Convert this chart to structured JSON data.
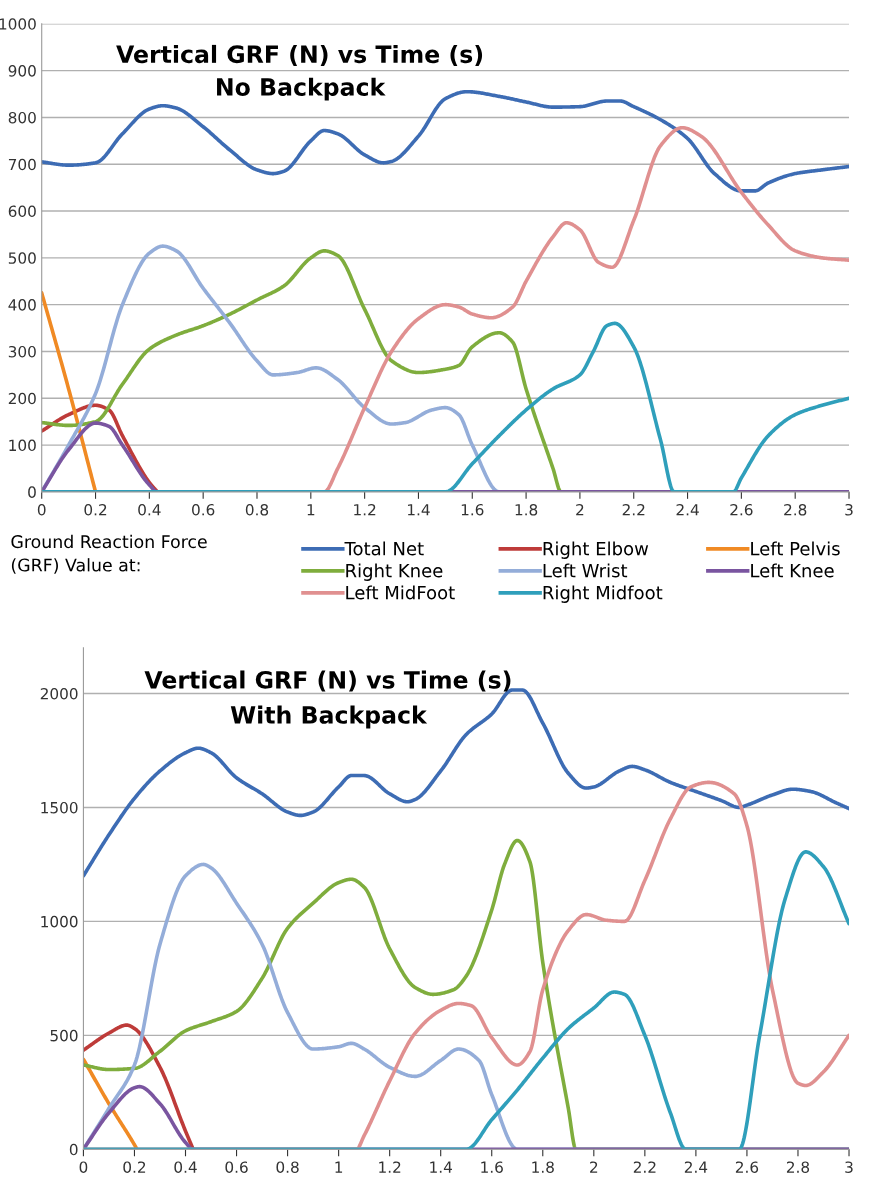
{
  "chart_data": [
    {
      "type": "line",
      "title": "Vertical GRF (N) vs Time (s)",
      "subtitle": "No Backpack",
      "legend_title": "Ground Reaction Force (GRF) Value at:",
      "legend": "bottom",
      "grid": "y",
      "line_style": "solid",
      "marker": "none",
      "xlim": [
        0,
        3
      ],
      "xticks": [
        0,
        0.2,
        0.4,
        0.6,
        0.8,
        1,
        1.2,
        1.4,
        1.6,
        1.8,
        2,
        2.2,
        2.4,
        2.6,
        2.8,
        3
      ],
      "ylim": [
        0,
        1000
      ],
      "yticks": [
        0,
        100,
        200,
        300,
        400,
        500,
        600,
        700,
        800,
        900,
        1000
      ],
      "series": [
        {
          "name": "Total Net",
          "color": "#3d6cb4",
          "x": [
            0,
            0.1,
            0.2,
            0.3,
            0.4,
            0.45,
            0.5,
            0.6,
            0.7,
            0.8,
            0.86,
            0.9,
            1.0,
            1.05,
            1.1,
            1.2,
            1.27,
            1.3,
            1.4,
            1.5,
            1.58,
            1.7,
            1.8,
            1.9,
            2.0,
            2.1,
            2.15,
            2.2,
            2.3,
            2.4,
            2.5,
            2.6,
            2.65,
            2.7,
            2.8,
            2.9,
            3.0
          ],
          "values": [
            705,
            698,
            703,
            765,
            818,
            825,
            820,
            780,
            730,
            688,
            680,
            685,
            750,
            772,
            765,
            720,
            703,
            706,
            760,
            840,
            855,
            845,
            833,
            822,
            823,
            835,
            835,
            823,
            795,
            755,
            680,
            643,
            643,
            660,
            680,
            688,
            695
          ]
        },
        {
          "name": "Right Elbow",
          "color": "#be3b39",
          "x": [
            0,
            0.1,
            0.2,
            0.25,
            0.3,
            0.4,
            0.43
          ],
          "values": [
            130,
            165,
            185,
            175,
            120,
            20,
            0
          ]
        },
        {
          "name": "Left Pelvis",
          "color": "#f08a24",
          "x": [
            0,
            0.1,
            0.2
          ],
          "values": [
            425,
            220,
            0
          ]
        },
        {
          "name": "Right Knee",
          "color": "#7fad3d",
          "x": [
            0,
            0.1,
            0.2,
            0.3,
            0.4,
            0.5,
            0.6,
            0.7,
            0.8,
            0.9,
            1.0,
            1.05,
            1.1,
            1.2,
            1.3,
            1.4,
            1.5,
            1.55,
            1.6,
            1.7,
            1.75,
            1.8,
            1.9,
            1.93,
            3
          ],
          "values": [
            148,
            142,
            150,
            230,
            305,
            335,
            355,
            380,
            410,
            440,
            500,
            515,
            505,
            390,
            280,
            255,
            262,
            270,
            310,
            340,
            320,
            220,
            50,
            0,
            0
          ]
        },
        {
          "name": "Left Wrist",
          "color": "#94add9",
          "x": [
            0,
            0.1,
            0.2,
            0.3,
            0.4,
            0.45,
            0.5,
            0.6,
            0.7,
            0.8,
            0.86,
            0.95,
            1.02,
            1.1,
            1.2,
            1.3,
            1.35,
            1.45,
            1.5,
            1.55,
            1.6,
            1.7,
            3
          ],
          "values": [
            0,
            100,
            210,
            400,
            510,
            525,
            515,
            435,
            360,
            280,
            250,
            255,
            265,
            240,
            180,
            145,
            148,
            175,
            180,
            165,
            100,
            0,
            0
          ]
        },
        {
          "name": "Left Knee",
          "color": "#7a55a0",
          "x": [
            0,
            0.1,
            0.2,
            0.25,
            0.3,
            0.4,
            0.43,
            3
          ],
          "values": [
            0,
            90,
            147,
            140,
            100,
            15,
            0,
            0
          ]
        },
        {
          "name": "Left MidFoot",
          "color": "#e09090",
          "x": [
            0,
            1.05,
            1.1,
            1.2,
            1.3,
            1.4,
            1.5,
            1.55,
            1.6,
            1.67,
            1.75,
            1.8,
            1.9,
            1.95,
            2.0,
            2.07,
            2.12,
            2.2,
            2.3,
            2.38,
            2.45,
            2.6,
            2.7,
            2.8,
            2.9,
            3.0
          ],
          "values": [
            0,
            0,
            50,
            180,
            300,
            370,
            400,
            395,
            380,
            372,
            395,
            450,
            545,
            575,
            560,
            490,
            480,
            580,
            740,
            778,
            760,
            640,
            570,
            515,
            500,
            495
          ]
        },
        {
          "name": "Right Midfoot",
          "color": "#2f9fbb",
          "x": [
            0,
            1.5,
            1.6,
            1.7,
            1.8,
            1.9,
            2.0,
            2.05,
            2.1,
            2.13,
            2.2,
            2.3,
            2.35,
            2.57,
            2.6,
            2.7,
            2.8,
            2.9,
            3.0
          ],
          "values": [
            0,
            0,
            60,
            120,
            175,
            220,
            250,
            300,
            355,
            360,
            310,
            110,
            0,
            0,
            30,
            120,
            165,
            185,
            200
          ]
        }
      ]
    },
    {
      "type": "line",
      "title": "Vertical GRF (N) vs Time (s)",
      "subtitle": "With Backpack",
      "grid": "y",
      "line_style": "solid",
      "marker": "none",
      "xlim": [
        0,
        3
      ],
      "xticks": [
        0,
        0.2,
        0.4,
        0.6,
        0.8,
        1,
        1.2,
        1.4,
        1.6,
        1.8,
        2,
        2.2,
        2.4,
        2.6,
        2.8,
        3
      ],
      "ylim": [
        0,
        2200
      ],
      "yticks": [
        0,
        500,
        1000,
        1500,
        2000
      ],
      "series": [
        {
          "color": "#3d6cb4",
          "x": [
            0,
            0.1,
            0.2,
            0.3,
            0.4,
            0.45,
            0.5,
            0.6,
            0.7,
            0.8,
            0.85,
            0.9,
            1.0,
            1.05,
            1.1,
            1.2,
            1.27,
            1.3,
            1.4,
            1.5,
            1.6,
            1.68,
            1.72,
            1.8,
            1.9,
            1.97,
            2.0,
            2.1,
            2.15,
            2.2,
            2.3,
            2.4,
            2.5,
            2.57,
            2.6,
            2.7,
            2.78,
            2.85,
            2.95,
            3.0
          ],
          "values": [
            1200,
            1380,
            1540,
            1660,
            1740,
            1760,
            1740,
            1630,
            1560,
            1480,
            1465,
            1480,
            1590,
            1640,
            1640,
            1560,
            1525,
            1535,
            1660,
            1820,
            1910,
            2015,
            2015,
            1870,
            1650,
            1585,
            1590,
            1660,
            1680,
            1665,
            1610,
            1570,
            1530,
            1500,
            1510,
            1555,
            1580,
            1570,
            1520,
            1495
          ]
        },
        {
          "color": "#be3b39",
          "x": [
            0,
            0.1,
            0.17,
            0.2,
            0.3,
            0.4,
            0.43
          ],
          "values": [
            435,
            510,
            545,
            530,
            360,
            80,
            0
          ]
        },
        {
          "color": "#f08a24",
          "x": [
            0,
            0.1,
            0.2,
            0.21
          ],
          "values": [
            395,
            200,
            20,
            0
          ]
        },
        {
          "color": "#7fad3d",
          "x": [
            0,
            0.1,
            0.2,
            0.3,
            0.4,
            0.5,
            0.6,
            0.7,
            0.8,
            0.9,
            1.0,
            1.05,
            1.1,
            1.2,
            1.3,
            1.37,
            1.45,
            1.5,
            1.6,
            1.65,
            1.7,
            1.75,
            1.8,
            1.9,
            1.93,
            3
          ],
          "values": [
            370,
            350,
            355,
            430,
            520,
            560,
            605,
            750,
            970,
            1080,
            1170,
            1185,
            1150,
            880,
            710,
            680,
            700,
            760,
            1050,
            1250,
            1355,
            1260,
            820,
            180,
            0,
            0
          ]
        },
        {
          "color": "#94add9",
          "x": [
            0,
            0.1,
            0.2,
            0.3,
            0.4,
            0.47,
            0.5,
            0.6,
            0.7,
            0.8,
            0.9,
            1.0,
            1.05,
            1.1,
            1.2,
            1.3,
            1.4,
            1.47,
            1.55,
            1.6,
            1.7,
            3
          ],
          "values": [
            0,
            180,
            370,
            900,
            1200,
            1250,
            1235,
            1080,
            900,
            600,
            440,
            450,
            465,
            440,
            360,
            320,
            390,
            440,
            390,
            240,
            0,
            0
          ]
        },
        {
          "color": "#7a55a0",
          "x": [
            0,
            0.1,
            0.2,
            0.22,
            0.3,
            0.4,
            0.43,
            3
          ],
          "values": [
            0,
            160,
            270,
            275,
            200,
            30,
            0,
            0
          ]
        },
        {
          "color": "#e09090",
          "x": [
            0,
            1.07,
            1.1,
            1.2,
            1.3,
            1.4,
            1.47,
            1.52,
            1.6,
            1.7,
            1.75,
            1.8,
            1.9,
            1.97,
            2.05,
            2.12,
            2.2,
            2.3,
            2.38,
            2.45,
            2.55,
            2.6,
            2.7,
            2.8,
            2.83,
            2.9,
            3.0
          ],
          "values": [
            0,
            0,
            60,
            300,
            510,
            610,
            640,
            630,
            490,
            370,
            430,
            700,
            960,
            1030,
            1005,
            1000,
            1180,
            1450,
            1590,
            1610,
            1560,
            1420,
            700,
            290,
            280,
            340,
            500
          ]
        },
        {
          "color": "#2f9fbb",
          "x": [
            0,
            1.5,
            1.6,
            1.7,
            1.8,
            1.9,
            2.0,
            2.08,
            2.12,
            2.2,
            2.3,
            2.36,
            2.57,
            2.65,
            2.75,
            2.83,
            2.9,
            3.0
          ],
          "values": [
            0,
            0,
            130,
            260,
            400,
            530,
            620,
            690,
            680,
            500,
            160,
            0,
            0,
            500,
            1100,
            1305,
            1240,
            990
          ]
        }
      ]
    }
  ]
}
